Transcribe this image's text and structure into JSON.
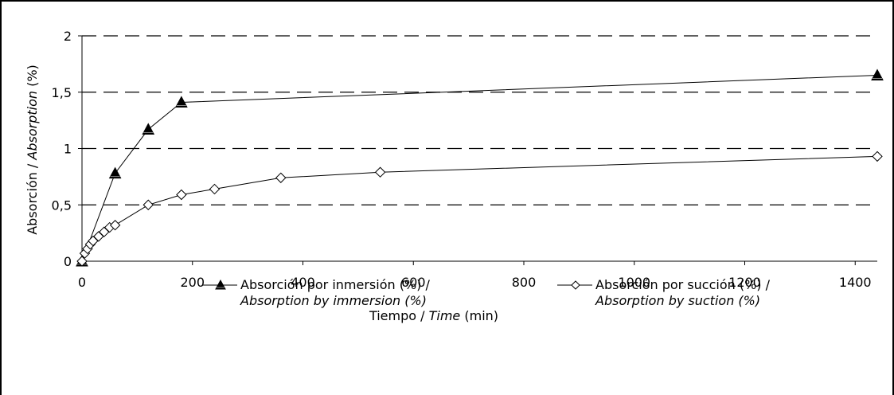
{
  "chart_data": {
    "type": "line",
    "title": "",
    "xlabel": {
      "main": "Tiempo / ",
      "italic": "Time",
      "unit": " (min)"
    },
    "ylabel": {
      "main": "Absorción / ",
      "italic": "Absorption",
      "unit": " (%)"
    },
    "xlim": [
      0,
      1440
    ],
    "ylim": [
      0,
      2
    ],
    "xticks": [
      0,
      200,
      400,
      600,
      800,
      1000,
      1200,
      1400
    ],
    "xtick_labels": [
      "0",
      "200",
      "400",
      "600",
      "800",
      "1000",
      "1200",
      "1400"
    ],
    "yticks": [
      0,
      0.5,
      1,
      1.5,
      2
    ],
    "ytick_labels": [
      "0",
      "0,5",
      "1",
      "1,5",
      "2"
    ],
    "grid": "horizontal dashed",
    "legend_position": "bottom",
    "series": [
      {
        "name": "Absorción por inmersión (%) /",
        "name_italic": "Absorption by immersion (%)",
        "marker": "triangle",
        "x": [
          0,
          60,
          120,
          180,
          1440
        ],
        "y": [
          0,
          0.78,
          1.17,
          1.41,
          1.65
        ]
      },
      {
        "name": "Absorción por succión (%) /",
        "name_italic": "Absorption by suction (%)",
        "marker": "diamond",
        "x": [
          0,
          5,
          10,
          15,
          20,
          30,
          40,
          50,
          60,
          120,
          180,
          240,
          360,
          540,
          1440
        ],
        "y": [
          0,
          0.07,
          0.11,
          0.15,
          0.18,
          0.22,
          0.26,
          0.3,
          0.32,
          0.5,
          0.59,
          0.64,
          0.74,
          0.79,
          0.93
        ]
      }
    ]
  },
  "colors": {
    "line": "#000000",
    "grid": "#000000",
    "triangle_fill": "#000000",
    "diamond_fill": "#ffffff"
  }
}
